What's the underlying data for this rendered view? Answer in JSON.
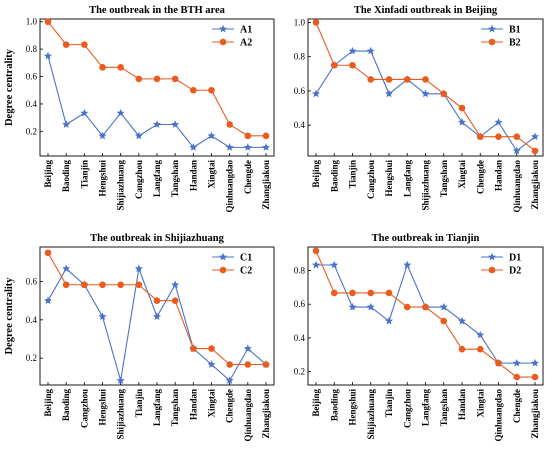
{
  "colors": {
    "blue": "#4a73c9",
    "orange": "#ea5b1e"
  },
  "chart_data": [
    {
      "type": "line",
      "title": "The outbreak in the BTH area",
      "ylabel": "Degree centrality",
      "ylim": [
        0.02,
        1.02
      ],
      "yticks": [
        0.2,
        0.4,
        0.6,
        0.8,
        1.0
      ],
      "ytick_labels": [
        "0.2",
        "0.4",
        "0.6",
        "0.8",
        "1.0"
      ],
      "categories": [
        "Beijing",
        "Baoding",
        "Tianjin",
        "Hengshui",
        "Shijiazhuang",
        "Cangzhou",
        "Langfang",
        "Tangshan",
        "Handan",
        "Xingtai",
        "Qinhuangdao",
        "Chengde",
        "Zhangjiakou"
      ],
      "legend_position": "top-right",
      "series": [
        {
          "name": "A1",
          "marker": "star",
          "color": "#4a73c9",
          "values": [
            0.75,
            0.25,
            0.333,
            0.167,
            0.333,
            0.167,
            0.25,
            0.25,
            0.083,
            0.167,
            0.083,
            0.083,
            0.083
          ]
        },
        {
          "name": "A2",
          "marker": "circle",
          "color": "#ea5b1e",
          "values": [
            1.0,
            0.833,
            0.833,
            0.667,
            0.667,
            0.583,
            0.583,
            0.583,
            0.5,
            0.5,
            0.25,
            0.167,
            0.167
          ]
        }
      ]
    },
    {
      "type": "line",
      "title": "The Xinfadi outbreak in Beijing",
      "ylabel": "",
      "ylim": [
        0.22,
        1.02
      ],
      "yticks": [
        0.4,
        0.6,
        0.8,
        1.0
      ],
      "ytick_labels": [
        "0.4",
        "0.6",
        "0.8",
        "1.0"
      ],
      "categories": [
        "Beijing",
        "Baoding",
        "Tianjin",
        "Cangzhou",
        "Hengshui",
        "Langfang",
        "Shijiazhuang",
        "Tangshan",
        "Xingtai",
        "Chengde",
        "Handan",
        "Qinhuangdao",
        "Zhangjiakou"
      ],
      "legend_position": "top-right",
      "series": [
        {
          "name": "B1",
          "marker": "star",
          "color": "#4a73c9",
          "values": [
            0.583,
            0.75,
            0.833,
            0.833,
            0.583,
            0.667,
            0.583,
            0.583,
            0.417,
            0.333,
            0.417,
            0.25,
            0.333
          ]
        },
        {
          "name": "B2",
          "marker": "circle",
          "color": "#ea5b1e",
          "values": [
            1.0,
            0.75,
            0.75,
            0.667,
            0.667,
            0.667,
            0.667,
            0.583,
            0.5,
            0.333,
            0.333,
            0.333,
            0.25
          ]
        }
      ]
    },
    {
      "type": "line",
      "title": "The outbreak in Shijiazhuang",
      "ylabel": "Degree centrality",
      "ylim": [
        0.06,
        0.78
      ],
      "yticks": [
        0.2,
        0.4,
        0.6
      ],
      "ytick_labels": [
        "0.2",
        "0.4",
        "0.6"
      ],
      "categories": [
        "Beijing",
        "Baoding",
        "Cangzhou",
        "Hengshui",
        "Shijiazhuang",
        "Tianjin",
        "Langfang",
        "Tangshan",
        "Handan",
        "Xingtai",
        "Chengde",
        "Qinhuangdao",
        "Zhangjiakou"
      ],
      "legend_position": "top-right",
      "series": [
        {
          "name": "C1",
          "marker": "star",
          "color": "#4a73c9",
          "values": [
            0.5,
            0.667,
            0.583,
            0.417,
            0.083,
            0.667,
            0.417,
            0.583,
            0.25,
            0.167,
            0.083,
            0.25,
            0.167
          ]
        },
        {
          "name": "C2",
          "marker": "circle",
          "color": "#ea5b1e",
          "values": [
            0.75,
            0.583,
            0.583,
            0.583,
            0.583,
            0.583,
            0.5,
            0.5,
            0.25,
            0.25,
            0.167,
            0.167,
            0.167
          ]
        }
      ]
    },
    {
      "type": "line",
      "title": "The outbreak in Tianjin",
      "ylabel": "",
      "ylim": [
        0.12,
        0.94
      ],
      "yticks": [
        0.2,
        0.4,
        0.6,
        0.8
      ],
      "ytick_labels": [
        "0.2",
        "0.4",
        "0.6",
        "0.8"
      ],
      "categories": [
        "Beijing",
        "Baoding",
        "Hengshui",
        "Shijiazhuang",
        "Tianjin",
        "Cangzhou",
        "Langfang",
        "Tangshan",
        "Handan",
        "Xingtai",
        "Qinhuangdao",
        "Chengde",
        "Zhangjiakou"
      ],
      "legend_position": "top-right",
      "series": [
        {
          "name": "D1",
          "marker": "star",
          "color": "#4a73c9",
          "values": [
            0.833,
            0.833,
            0.583,
            0.583,
            0.5,
            0.833,
            0.583,
            0.583,
            0.5,
            0.417,
            0.25,
            0.25,
            0.25
          ]
        },
        {
          "name": "D2",
          "marker": "circle",
          "color": "#ea5b1e",
          "values": [
            0.917,
            0.667,
            0.667,
            0.667,
            0.667,
            0.583,
            0.583,
            0.5,
            0.333,
            0.333,
            0.25,
            0.167,
            0.167
          ]
        }
      ]
    }
  ]
}
